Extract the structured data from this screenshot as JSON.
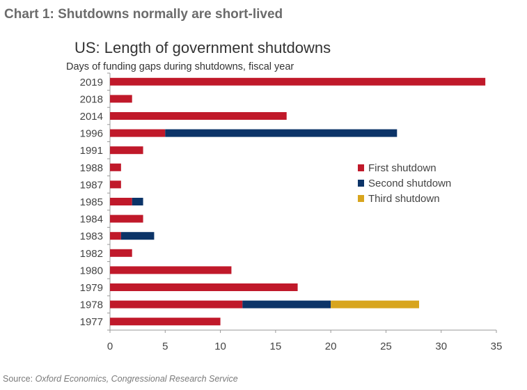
{
  "heading": "Chart 1: Shutdowns normally are short-lived",
  "source_label": "Source:",
  "source_text": "Oxford Economics, Congressional Research Service",
  "chart_data": {
    "type": "bar",
    "orientation": "horizontal",
    "stacked": true,
    "title": "US: Length of government shutdowns",
    "subtitle": "Days of funding gaps during shutdowns, fiscal year",
    "categories": [
      "2019",
      "2018",
      "2014",
      "1996",
      "1991",
      "1988",
      "1987",
      "1985",
      "1984",
      "1983",
      "1982",
      "1980",
      "1979",
      "1978",
      "1977"
    ],
    "series": [
      {
        "name": "First shutdown",
        "color": "#c0192a",
        "values": [
          34,
          2,
          16,
          5,
          3,
          1,
          1,
          2,
          3,
          1,
          2,
          11,
          17,
          12,
          10
        ]
      },
      {
        "name": "Second shutdown",
        "color": "#0c3468",
        "values": [
          0,
          0,
          0,
          21,
          0,
          0,
          0,
          1,
          0,
          3,
          0,
          0,
          0,
          8,
          0
        ]
      },
      {
        "name": "Third shutdown",
        "color": "#d8a51e",
        "values": [
          0,
          0,
          0,
          0,
          0,
          0,
          0,
          0,
          0,
          0,
          0,
          0,
          0,
          8,
          0
        ]
      }
    ],
    "xlim": [
      0,
      35
    ],
    "xticks": [
      0,
      5,
      10,
      15,
      20,
      25,
      30,
      35
    ],
    "grid": false,
    "legend": "right-middle"
  }
}
